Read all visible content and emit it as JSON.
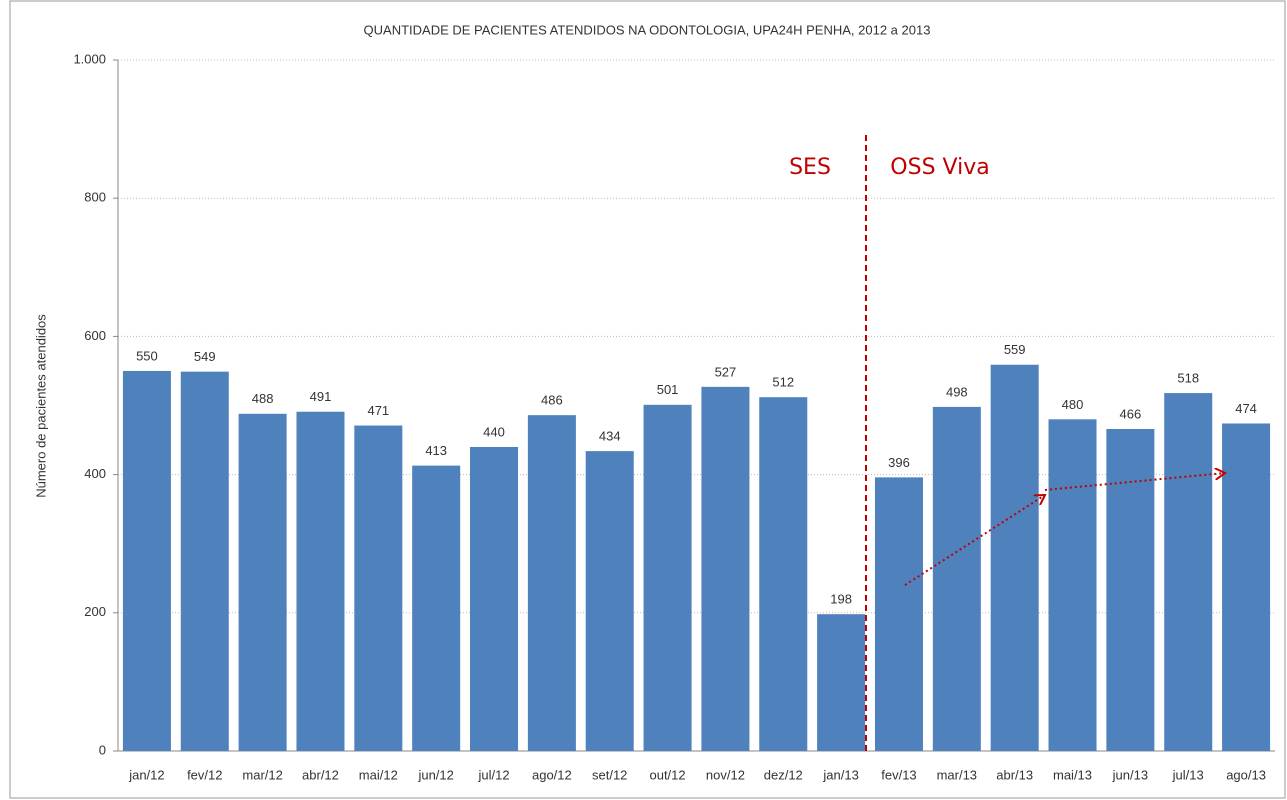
{
  "chart_data": {
    "type": "bar",
    "title": "QUANTIDADE DE PACIENTES  ATENDIDOS NA ODONTOLOGIA,  UPA24H  PENHA, 2012 a 2013",
    "y_label": "Número de pacientes atendidos",
    "annotations": [
      "SES",
      "OSS Viva"
    ],
    "categories": [
      "jan/12",
      "fev/12",
      "mar/12",
      "abr/12",
      "mai/12",
      "jun/12",
      "jul/12",
      "ago/12",
      "set/12",
      "out/12",
      "nov/12",
      "dez/12",
      "jan/13",
      "fev/13",
      "mar/13",
      "abr/13",
      "mai/13",
      "jun/13",
      "jul/13",
      "ago/13"
    ],
    "values": [
      550,
      549,
      488,
      491,
      471,
      413,
      440,
      486,
      434,
      501,
      527,
      512,
      198,
      396,
      498,
      559,
      480,
      466,
      518,
      474
    ],
    "color": "#4f81bd",
    "ylim": [
      0,
      1000
    ],
    "yticks": [
      0,
      200,
      400,
      600,
      800,
      {
        "value": 1000,
        "label": "1.000"
      }
    ],
    "grid": true
  }
}
